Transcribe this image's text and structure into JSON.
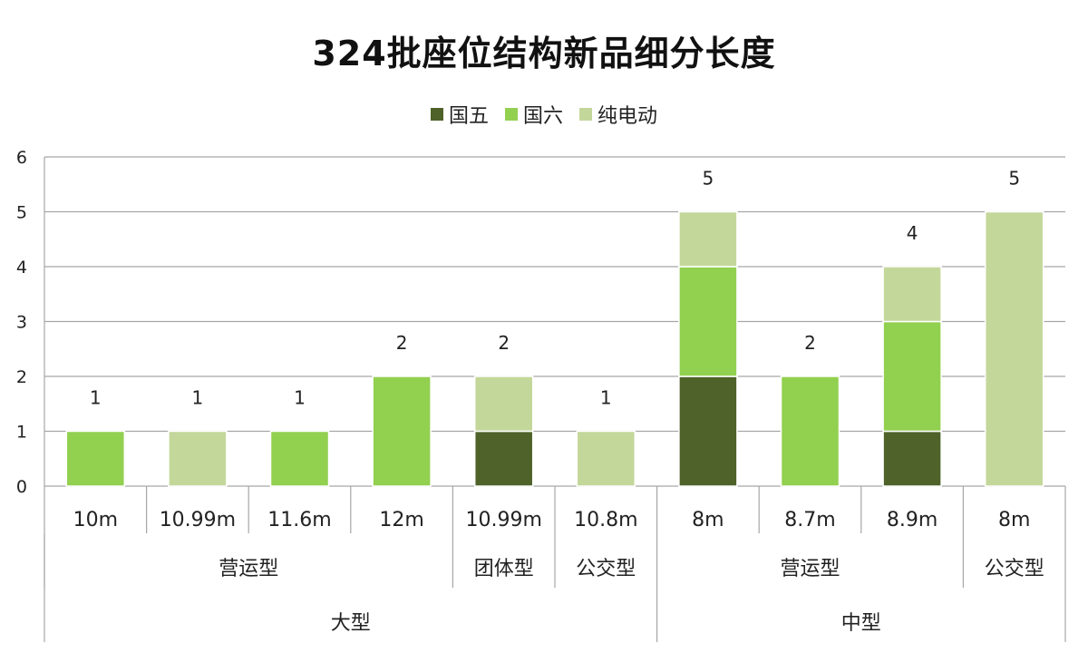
{
  "chart_data": {
    "type": "bar",
    "stacked": true,
    "title": "324批座位结构新品细分长度",
    "categories": [
      "10m",
      "10.99m",
      "11.6m",
      "12m",
      "10.99m",
      "10.8m",
      "8m",
      "8.7m",
      "8.9m",
      "8m"
    ],
    "category_groups_level2": [
      {
        "label": "营运型",
        "span": 4
      },
      {
        "label": "团体型",
        "span": 1
      },
      {
        "label": "公交型",
        "span": 1
      },
      {
        "label": "营运型",
        "span": 3
      },
      {
        "label": "公交型",
        "span": 1
      }
    ],
    "category_groups_level1": [
      {
        "label": "大型",
        "span": 6
      },
      {
        "label": "中型",
        "span": 4
      }
    ],
    "series": [
      {
        "name": "国五",
        "color": "#4e6229",
        "values": [
          0,
          0,
          0,
          0,
          1,
          0,
          2,
          0,
          1,
          0
        ]
      },
      {
        "name": "国六",
        "color": "#92d050",
        "values": [
          1,
          0,
          1,
          2,
          0,
          0,
          2,
          2,
          2,
          0
        ]
      },
      {
        "name": "纯电动",
        "color": "#c4d79b",
        "values": [
          0,
          1,
          0,
          0,
          1,
          1,
          1,
          0,
          1,
          5
        ]
      }
    ],
    "totals": [
      1,
      1,
      1,
      2,
      2,
      1,
      5,
      2,
      4,
      5
    ],
    "ylim": [
      0,
      6
    ],
    "yticks": [
      "0",
      "1",
      "2",
      "3",
      "4",
      "5",
      "6"
    ],
    "grid": true,
    "legend_position": "top"
  }
}
